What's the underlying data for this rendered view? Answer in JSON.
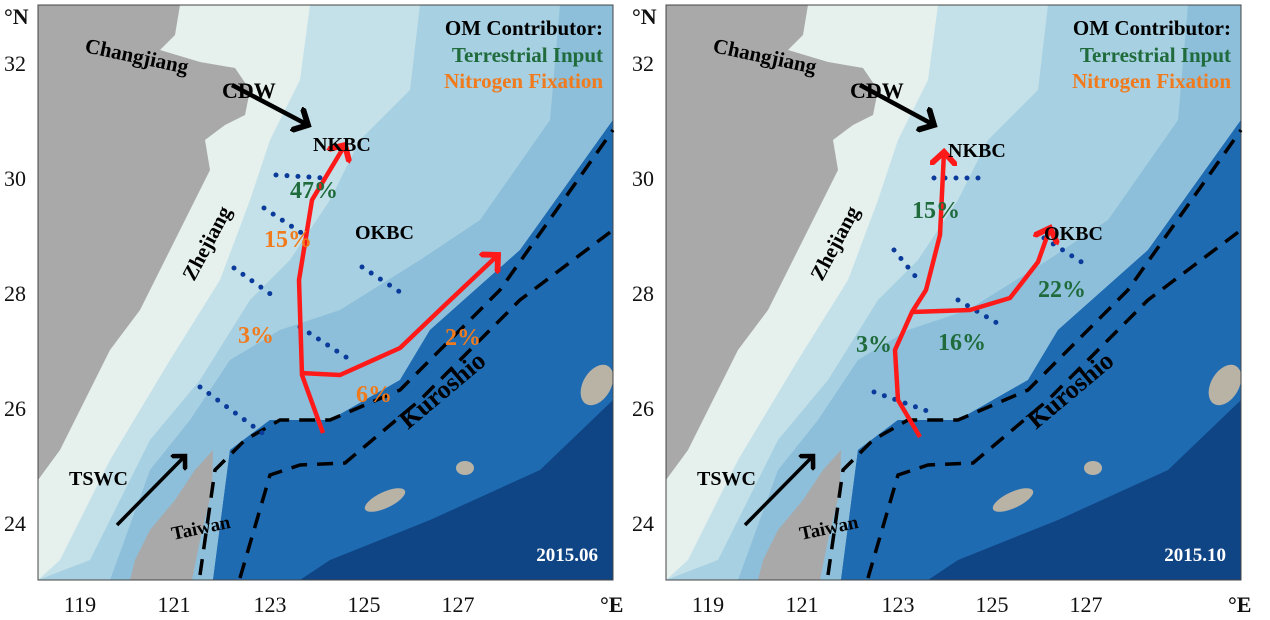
{
  "colors": {
    "terrestrial": "#1f6b3c",
    "nitrogen": "#f07a1c",
    "current_arrow": "#ff1a1a",
    "transect": "#0a3a9a",
    "land": "#a9a9a9"
  },
  "axes": {
    "lat_unit": "°N",
    "lon_unit": "°E",
    "lat_ticks": [
      "32",
      "30",
      "28",
      "26",
      "24"
    ],
    "lon_ticks": [
      "119",
      "121",
      "123",
      "125",
      "127"
    ]
  },
  "legend": {
    "title": "OM Contributor:",
    "terrestrial": "Terrestrial Input",
    "nitrogen": "Nitrogen Fixation"
  },
  "places": {
    "changjiang": "Changjiang",
    "zhejiang": "Zhejiang",
    "taiwan": "Taiwan",
    "cdw": "CDW",
    "nkbc": "NKBC",
    "okbc": "OKBC",
    "tswc": "TSWC",
    "kuroshio": "Kuroshio"
  },
  "panels": [
    {
      "date": "2015.06",
      "values": [
        {
          "text": "47%",
          "type": "terrestrial"
        },
        {
          "text": "15%",
          "type": "nitrogen"
        },
        {
          "text": "3%",
          "type": "nitrogen"
        },
        {
          "text": "2%",
          "type": "nitrogen"
        },
        {
          "text": "6%",
          "type": "nitrogen"
        }
      ]
    },
    {
      "date": "2015.10",
      "values": [
        {
          "text": "15%",
          "type": "terrestrial"
        },
        {
          "text": "22%",
          "type": "terrestrial"
        },
        {
          "text": "3%",
          "type": "terrestrial"
        },
        {
          "text": "16%",
          "type": "terrestrial"
        }
      ]
    }
  ]
}
